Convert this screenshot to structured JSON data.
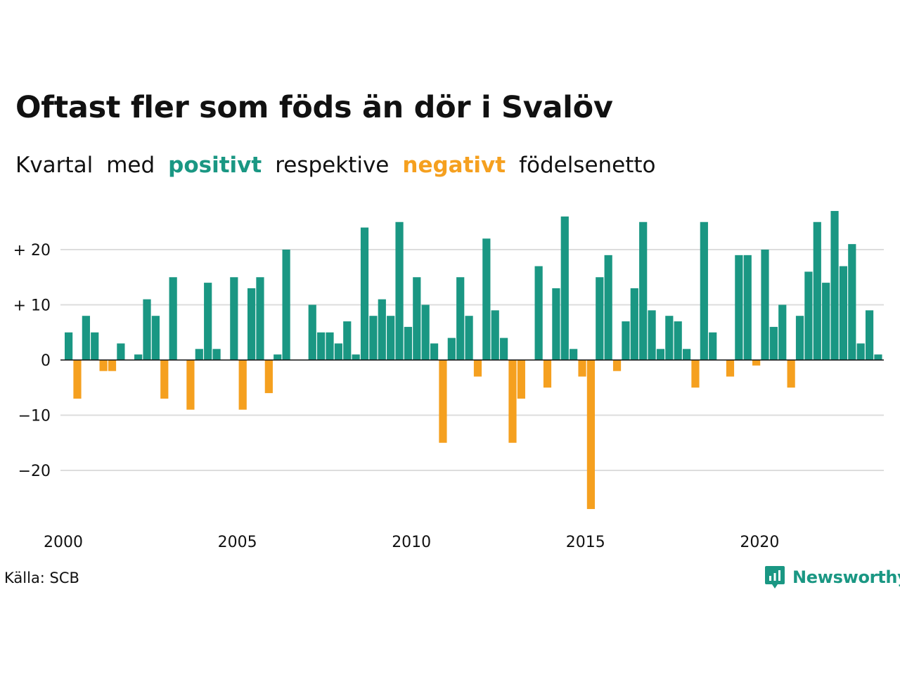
{
  "title": "Oftast fler som föds än dör i Svalöv",
  "subtitle": {
    "w1": "Kvartal",
    "w2": "med",
    "positive": "positivt",
    "w3": "respektive",
    "negative": "negativt",
    "w4": "födelsenetto"
  },
  "source": "Källa: SCB",
  "brand": {
    "name": "Newsworthy",
    "icon": "newsworthy-logo-icon"
  },
  "colors": {
    "positive": "#1a9783",
    "negative": "#f5a01f",
    "grid": "#dddddd",
    "axis": "#111111"
  },
  "chart_data": {
    "type": "bar",
    "x_unit": "quarter",
    "start": "2000 Q1",
    "x_ticks": [
      "2000",
      "2005",
      "2010",
      "2015",
      "2020"
    ],
    "y_ticks": [
      "−20",
      "−10",
      "0",
      "+ 10",
      "+ 20"
    ],
    "y_tick_values": [
      -20,
      -10,
      0,
      10,
      20
    ],
    "ylim": [
      -29,
      30
    ],
    "grid": true,
    "values": [
      5,
      -7,
      8,
      5,
      -2,
      -2,
      3,
      0,
      1,
      11,
      8,
      -7,
      15,
      0,
      -9,
      2,
      14,
      2,
      0,
      15,
      -9,
      13,
      15,
      -6,
      1,
      20,
      0,
      0,
      10,
      5,
      5,
      3,
      7,
      1,
      24,
      8,
      11,
      8,
      25,
      6,
      15,
      10,
      3,
      -15,
      4,
      15,
      8,
      -3,
      22,
      9,
      4,
      -15,
      -7,
      0,
      17,
      -5,
      13,
      26,
      2,
      -3,
      -27,
      15,
      19,
      -2,
      7,
      13,
      25,
      9,
      2,
      8,
      7,
      2,
      -5,
      25,
      5,
      0,
      -3,
      19,
      19,
      -1,
      20,
      6,
      10,
      -5,
      8,
      16,
      25,
      14,
      27,
      17,
      21,
      3,
      9,
      1
    ]
  }
}
